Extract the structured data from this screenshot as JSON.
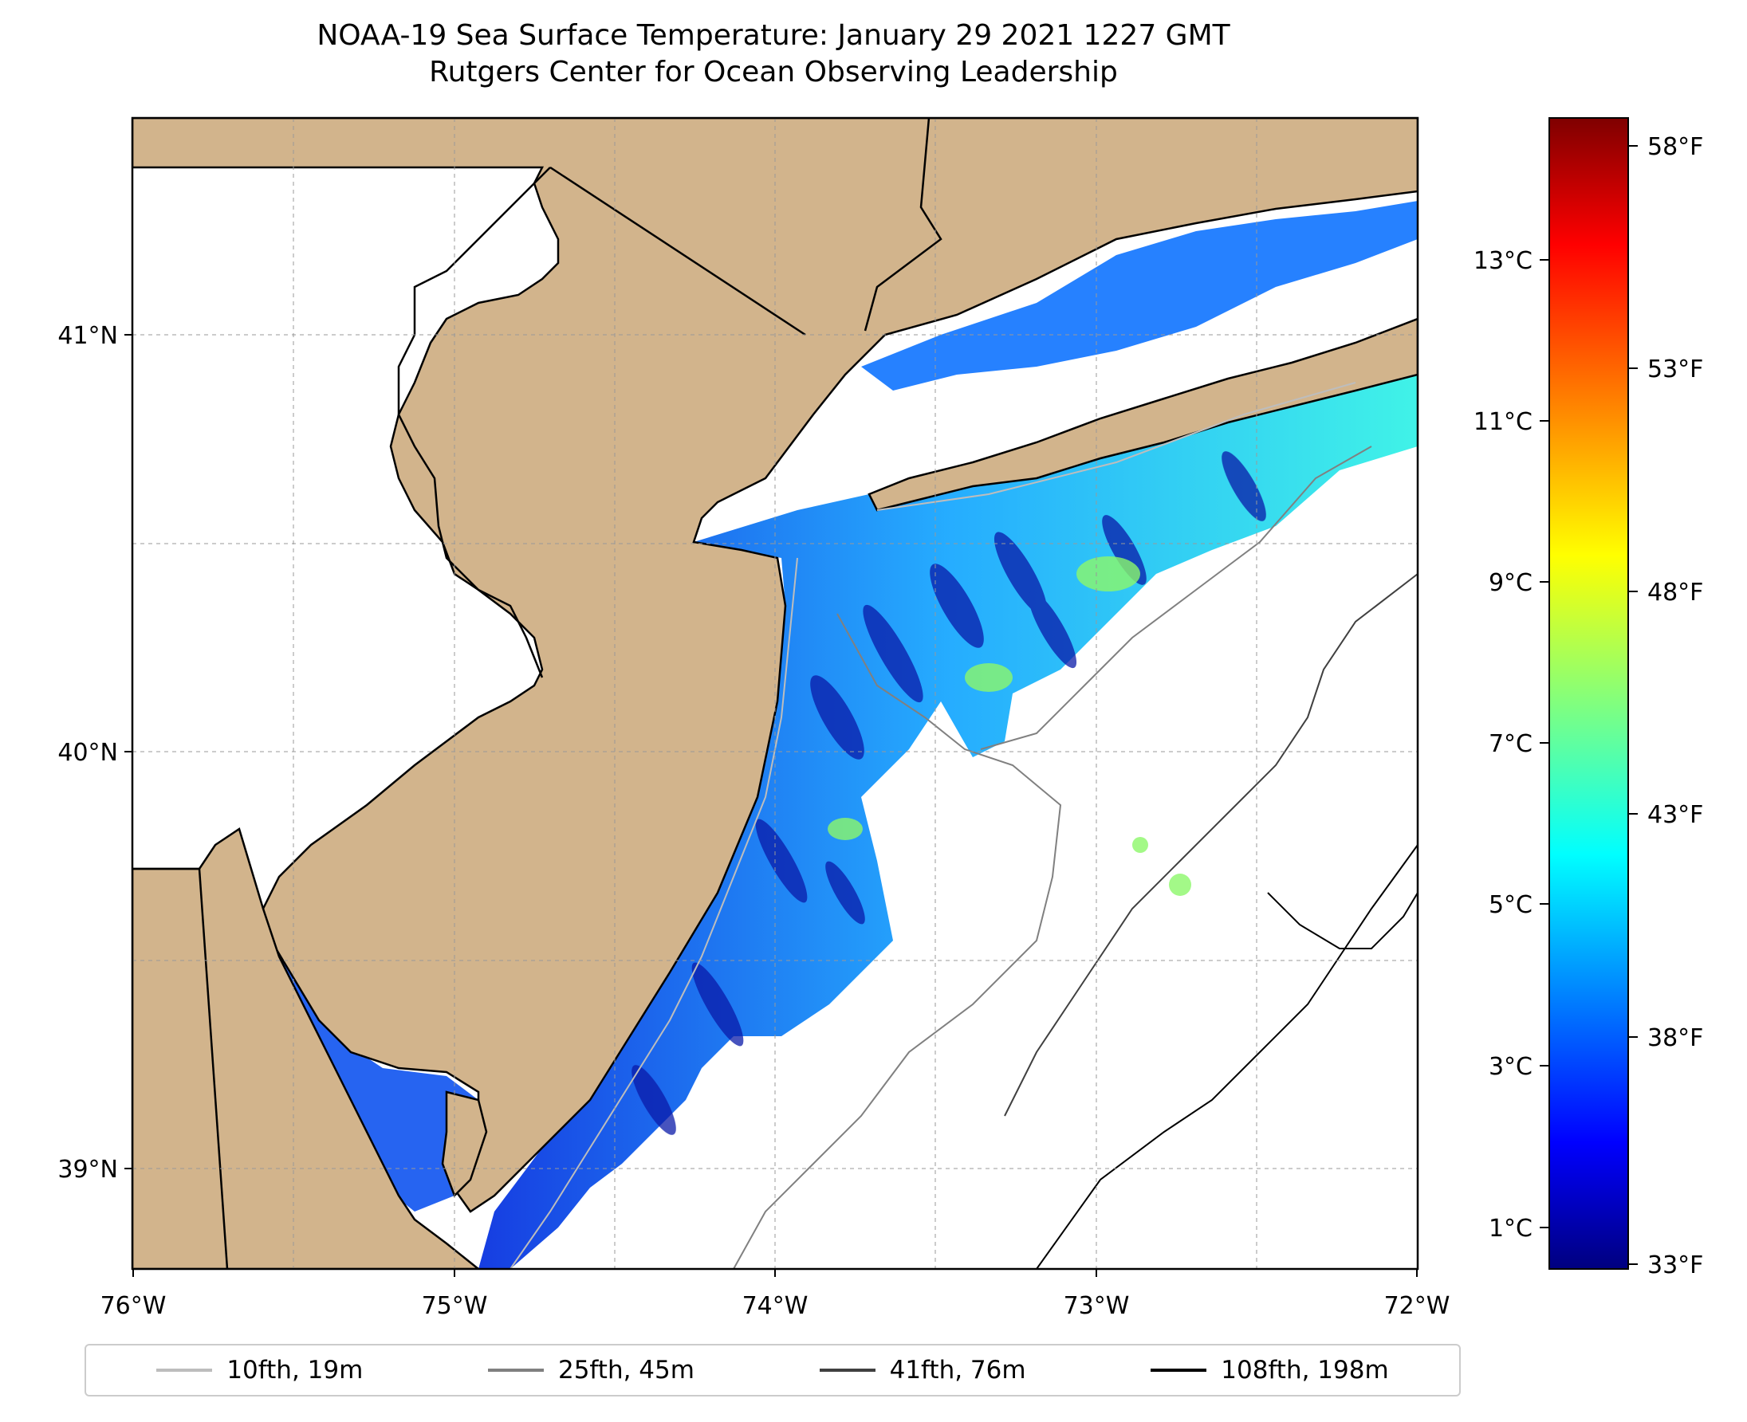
{
  "title": {
    "line1": "NOAA-19 Sea Surface Temperature: January 29 2021 1227 GMT",
    "line2": "Rutgers Center for Ocean Observing Leadership"
  },
  "map": {
    "lon_labels": [
      "76°W",
      "75°W",
      "74°W",
      "73°W",
      "72°W"
    ],
    "lat_labels": [
      "41°N",
      "40°N",
      "39°N"
    ],
    "extent": {
      "lon_min": -76.0,
      "lon_max": -72.0,
      "lat_min": 38.75,
      "lat_max": 41.52
    },
    "gridlines": true,
    "land_color": "#d2b48c",
    "no_data_color": "#ffffff"
  },
  "colorbar": {
    "colormap": "jet",
    "celsius_labels": [
      "13°C",
      "11°C",
      "9°C",
      "7°C",
      "5°C",
      "3°C",
      "1°C"
    ],
    "fahrenheit_labels": [
      "58°F",
      "53°F",
      "48°F",
      "43°F",
      "38°F",
      "33°F"
    ]
  },
  "legend": {
    "entries": [
      {
        "label": "10fth, 19m",
        "color": "#bdbdbd"
      },
      {
        "label": "25fth, 45m",
        "color": "#808080"
      },
      {
        "label": "41fth, 76m",
        "color": "#404040"
      },
      {
        "label": "108fth, 198m",
        "color": "#000000"
      }
    ]
  }
}
